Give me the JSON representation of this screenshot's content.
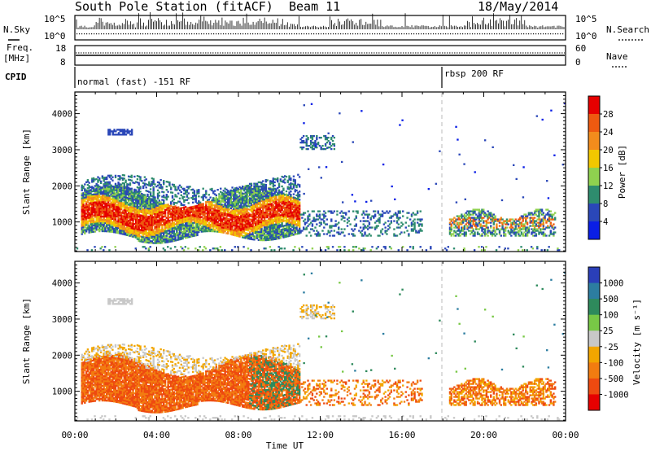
{
  "chart_data": {
    "type": "heatmap",
    "header": {
      "station": "South Pole Station (fitACF)",
      "beam": "Beam 11",
      "date": "18/May/2014"
    },
    "strip_panels": {
      "nsky": {
        "label": "N.Sky",
        "ticks": [
          "10^5",
          "10^0"
        ]
      },
      "nsearch": {
        "label": "N.Search",
        "ticks": [
          "10^5",
          "10^0"
        ]
      },
      "freq": {
        "label_line1": "Freq.",
        "label_line2": "[MHz]",
        "ticks": [
          "18",
          "8"
        ]
      },
      "nave": {
        "label": "Nave",
        "ticks": [
          "60",
          "0"
        ]
      },
      "cpid": {
        "label": "CPID",
        "segments": [
          {
            "name": "normal (fast) -151 RF",
            "start_hour": 0
          },
          {
            "name": "rbsp 200 RF",
            "start_hour": 18.0
          }
        ]
      }
    },
    "xaxis": {
      "label": "Time UT",
      "range_hours": [
        0,
        24
      ],
      "ticks": [
        "00:00",
        "04:00",
        "08:00",
        "12:00",
        "16:00",
        "20:00",
        "00:00"
      ]
    },
    "power_panel": {
      "ylabel": "Slant Range [km]",
      "yticks": [
        "1000",
        "2000",
        "3000",
        "4000"
      ],
      "ylim": [
        180,
        4600
      ],
      "colorbar_label": "Power [dB]",
      "colorbar_ticks": [
        "4",
        "8",
        "12",
        "16",
        "20",
        "24",
        "28"
      ],
      "colors": [
        "#0a1ee6",
        "#2a47b8",
        "#2e8c6e",
        "#8fd14f",
        "#f2c700",
        "#f28c1c",
        "#ee5a10",
        "#e60000"
      ]
    },
    "velocity_panel": {
      "ylabel": "Slant Range [km]",
      "yticks": [
        "1000",
        "2000",
        "3000",
        "4000"
      ],
      "ylim": [
        180,
        4600
      ],
      "colorbar_label": "Velocity [m s⁻¹]",
      "colorbar_ticks": [
        "1000",
        "500",
        "100",
        "25",
        "-25",
        "-100",
        "-500",
        "-1000"
      ],
      "colors": [
        "#2a3fb8",
        "#2c7da0",
        "#2e8a5c",
        "#78c846",
        "#c8c8c8",
        "#f2a600",
        "#f27c10",
        "#ee4a10",
        "#e60000"
      ]
    }
  }
}
